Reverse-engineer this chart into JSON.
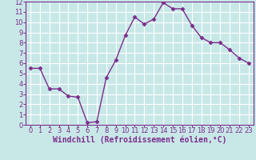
{
  "x": [
    0,
    1,
    2,
    3,
    4,
    5,
    6,
    7,
    8,
    9,
    10,
    11,
    12,
    13,
    14,
    15,
    16,
    17,
    18,
    19,
    20,
    21,
    22,
    23
  ],
  "y": [
    5.5,
    5.5,
    3.5,
    3.5,
    2.8,
    2.7,
    0.2,
    0.3,
    4.6,
    6.3,
    8.7,
    10.5,
    9.8,
    10.3,
    11.9,
    11.3,
    11.3,
    9.7,
    8.5,
    8.0,
    8.0,
    7.3,
    6.5,
    6.0
  ],
  "line_color": "#7b2d8b",
  "marker": "D",
  "marker_size": 2.5,
  "bg_color": "#c8e8e8",
  "grid_color": "#ffffff",
  "xlabel": "Windchill (Refroidissement éolien,°C)",
  "ylabel": "",
  "ylim": [
    0,
    12
  ],
  "xlim": [
    -0.5,
    23.5
  ],
  "yticks": [
    0,
    1,
    2,
    3,
    4,
    5,
    6,
    7,
    8,
    9,
    10,
    11,
    12
  ],
  "xticks": [
    0,
    1,
    2,
    3,
    4,
    5,
    6,
    7,
    8,
    9,
    10,
    11,
    12,
    13,
    14,
    15,
    16,
    17,
    18,
    19,
    20,
    21,
    22,
    23
  ],
  "axis_color": "#7b2d8b",
  "label_fontsize": 7,
  "tick_fontsize": 6,
  "linewidth": 1.0
}
